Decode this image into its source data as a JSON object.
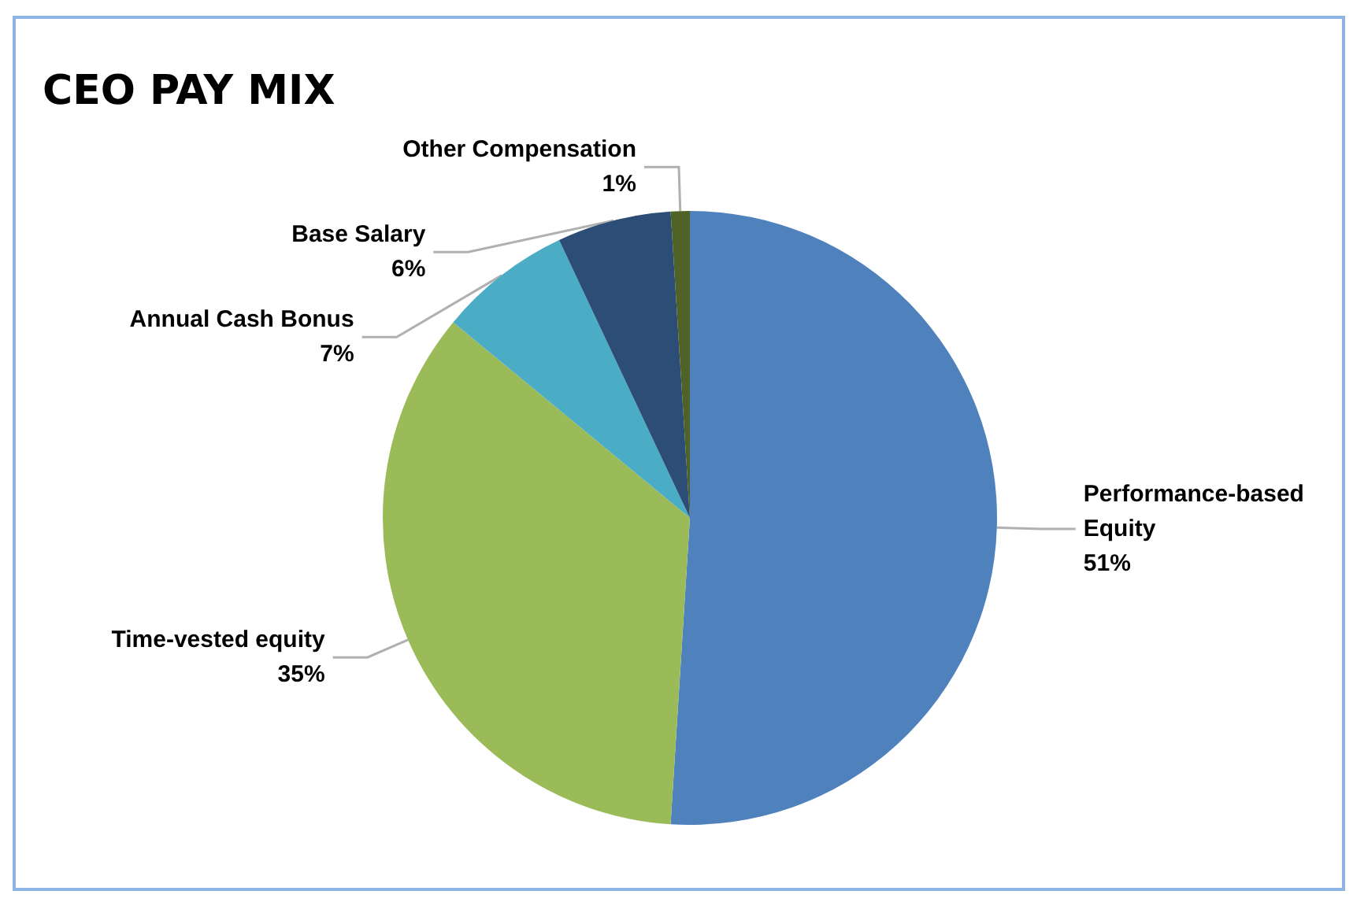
{
  "chart_data": {
    "type": "pie",
    "title": "CEO PAY MIX",
    "categories": [
      "Performance-based Equity",
      "Time-vested equity",
      "Annual Cash Bonus",
      "Base Salary",
      "Other Compensation"
    ],
    "values": [
      51,
      35,
      7,
      6,
      1
    ],
    "value_labels": [
      "51%",
      "35%",
      "7%",
      "6%",
      "1%"
    ],
    "colors": [
      "#4f81bd",
      "#9bbb59",
      "#4bacc6",
      "#2c4d75",
      "#4f6228"
    ],
    "legend": false
  }
}
